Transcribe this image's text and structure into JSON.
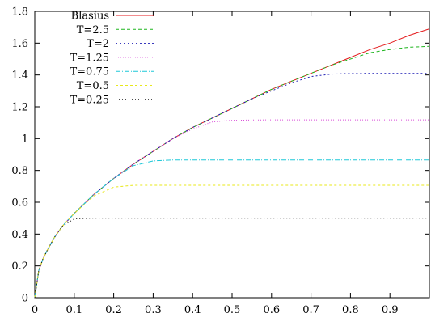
{
  "chart_data": {
    "type": "line",
    "title": "",
    "xlabel": "",
    "ylabel": "",
    "xlim": [
      0,
      1
    ],
    "ylim": [
      0,
      1.8
    ],
    "xticks": [
      "0",
      "0.1",
      "0.2",
      "0.3",
      "0.4",
      "0.5",
      "0.6",
      "0.7",
      "0.8",
      "0.9"
    ],
    "yticks": [
      "0",
      "0.2",
      "0.4",
      "0.6",
      "0.8",
      "1",
      "1.2",
      "1.4",
      "1.6",
      "1.8"
    ],
    "legend_position": "top-left",
    "grid": false,
    "x": [
      0,
      0.01,
      0.02,
      0.03,
      0.05,
      0.07,
      0.1,
      0.15,
      0.2,
      0.25,
      0.3,
      0.35,
      0.4,
      0.45,
      0.5,
      0.55,
      0.6,
      0.65,
      0.7,
      0.75,
      0.8,
      0.85,
      0.9,
      0.95,
      1.0
    ],
    "series": [
      {
        "name": "Blasius",
        "color": "#e41a1c",
        "dash": "solid",
        "values": [
          0,
          0.17,
          0.24,
          0.29,
          0.38,
          0.45,
          0.53,
          0.65,
          0.75,
          0.84,
          0.92,
          1.0,
          1.07,
          1.13,
          1.19,
          1.25,
          1.31,
          1.36,
          1.41,
          1.46,
          1.51,
          1.56,
          1.6,
          1.65,
          1.69
        ]
      },
      {
        "name": "T=2.5",
        "color": "#1fb51f",
        "dash": "4,3",
        "values": [
          0,
          0.17,
          0.24,
          0.29,
          0.38,
          0.45,
          0.53,
          0.65,
          0.75,
          0.84,
          0.92,
          1.0,
          1.07,
          1.13,
          1.19,
          1.25,
          1.31,
          1.36,
          1.41,
          1.46,
          1.5,
          1.54,
          1.56,
          1.575,
          1.58
        ]
      },
      {
        "name": "T=2",
        "color": "#1f1fb5",
        "dash": "2,3",
        "values": [
          0,
          0.17,
          0.24,
          0.29,
          0.38,
          0.45,
          0.53,
          0.65,
          0.75,
          0.84,
          0.92,
          1.0,
          1.07,
          1.13,
          1.19,
          1.25,
          1.3,
          1.35,
          1.39,
          1.405,
          1.41,
          1.41,
          1.41,
          1.41,
          1.41
        ]
      },
      {
        "name": "T=1.25",
        "color": "#d946d9",
        "dash": "1,2",
        "values": [
          0,
          0.17,
          0.24,
          0.29,
          0.38,
          0.45,
          0.53,
          0.65,
          0.75,
          0.84,
          0.92,
          1.0,
          1.06,
          1.105,
          1.115,
          1.117,
          1.118,
          1.118,
          1.118,
          1.118,
          1.118,
          1.118,
          1.118,
          1.118,
          1.118
        ]
      },
      {
        "name": "T=0.75",
        "color": "#1fc8d8",
        "dash": "6,2,1,2",
        "values": [
          0,
          0.17,
          0.24,
          0.29,
          0.38,
          0.45,
          0.53,
          0.65,
          0.75,
          0.83,
          0.86,
          0.866,
          0.866,
          0.866,
          0.866,
          0.866,
          0.866,
          0.866,
          0.866,
          0.866,
          0.866,
          0.866,
          0.866,
          0.866,
          0.866
        ]
      },
      {
        "name": "T=0.5",
        "color": "#e8e81a",
        "dash": "3,3",
        "values": [
          0,
          0.17,
          0.24,
          0.29,
          0.38,
          0.45,
          0.53,
          0.64,
          0.695,
          0.707,
          0.707,
          0.707,
          0.707,
          0.707,
          0.707,
          0.707,
          0.707,
          0.707,
          0.707,
          0.707,
          0.707,
          0.707,
          0.707,
          0.707,
          0.707
        ]
      },
      {
        "name": "T=0.25",
        "color": "#111111",
        "dash": "1,3",
        "values": [
          0,
          0.17,
          0.24,
          0.29,
          0.38,
          0.45,
          0.495,
          0.5,
          0.5,
          0.5,
          0.5,
          0.5,
          0.5,
          0.5,
          0.5,
          0.5,
          0.5,
          0.5,
          0.5,
          0.5,
          0.5,
          0.5,
          0.5,
          0.5,
          0.5
        ]
      }
    ]
  }
}
